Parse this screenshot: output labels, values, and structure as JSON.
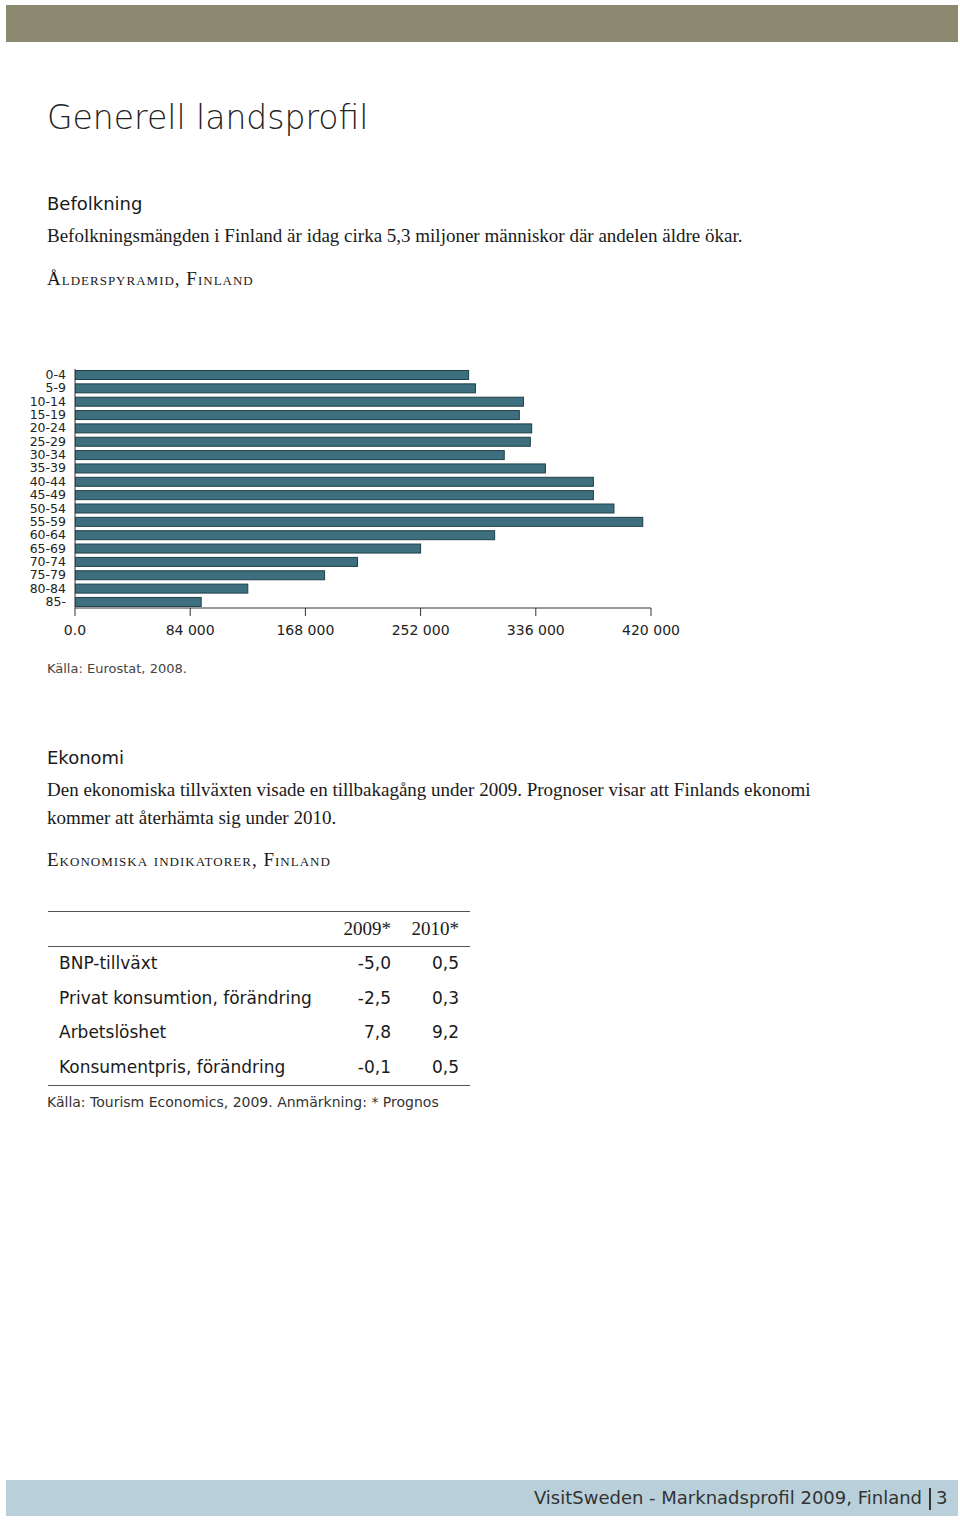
{
  "header": {
    "title": "Generell landsprofil"
  },
  "population": {
    "heading": "Befolkning",
    "text": "Befolkningsmängden i Finland är idag cirka 5,3 miljoner människor där andelen äldre ökar.",
    "source": "Källa: Eurostat, 2008."
  },
  "chart_data": {
    "type": "bar",
    "orientation": "horizontal",
    "title": "Ålderspyramid, Finland",
    "categories": [
      "0-4",
      "5-9",
      "10-14",
      "15-19",
      "20-24",
      "25-29",
      "30-34",
      "35-39",
      "40-44",
      "45-49",
      "50-54",
      "55-59",
      "60-64",
      "65-69",
      "70-74",
      "75-79",
      "80-84",
      "85-"
    ],
    "values": [
      287000,
      292000,
      327000,
      324000,
      333000,
      332000,
      313000,
      343000,
      378000,
      378000,
      393000,
      414000,
      306000,
      252000,
      206000,
      182000,
      126000,
      92000
    ],
    "color": "#3e6f7f",
    "xlim": [
      0,
      420000
    ],
    "xticks": [
      {
        "value": 0,
        "label": "0.0"
      },
      {
        "value": 84000,
        "label": "84 000"
      },
      {
        "value": 168000,
        "label": "168 000"
      },
      {
        "value": 252000,
        "label": "252 000"
      },
      {
        "value": 336000,
        "label": "336 000"
      },
      {
        "value": 420000,
        "label": "420 000"
      }
    ]
  },
  "economy": {
    "heading": "Ekonomi",
    "text": [
      "Den ekonomiska tillväxten visade en tillbakagång under 2009. Prognoser visar att Finlands ekonomi",
      "kommer att återhämta sig under 2010."
    ],
    "table_title": "Ekonomiska indikatorer, Finland"
  },
  "table": {
    "columns": [
      "2009*",
      "2010*"
    ],
    "rows": [
      [
        "BNP-tillväxt",
        "-5,0",
        "0,5"
      ],
      [
        "Privat konsumtion, förändring",
        "-2,5",
        "0,3"
      ],
      [
        "Arbetslöshet",
        "7,8",
        "9,2"
      ],
      [
        "Konsumentpris, förändring",
        "-0,1",
        "0,5"
      ]
    ],
    "source": "Källa: Tourism Economics, 2009. Anmärkning: * Prognos"
  },
  "footer": {
    "text": "VisitSweden - Marknadsprofil 2009, Finland",
    "page": "3"
  }
}
